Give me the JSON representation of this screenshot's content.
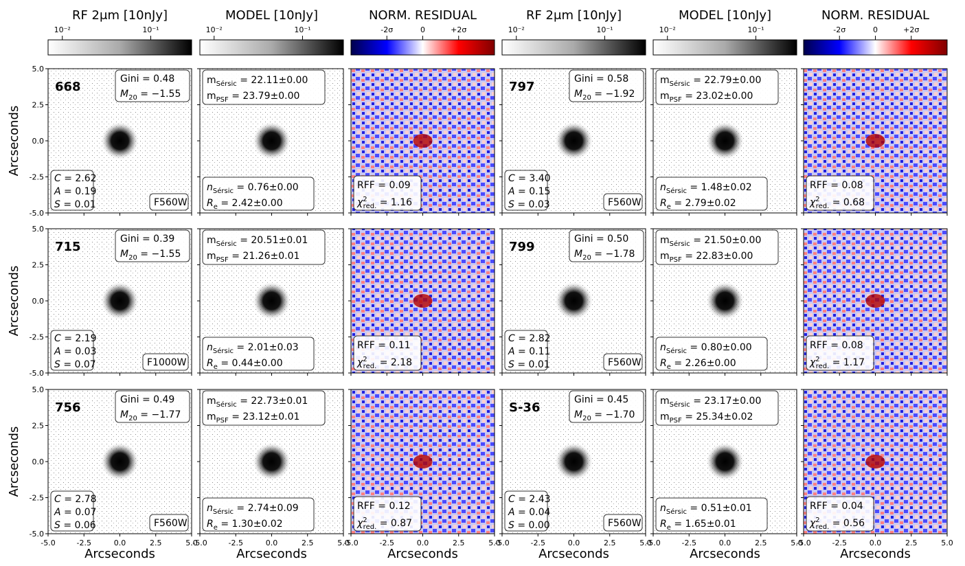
{
  "columns": [
    {
      "title": "RF 2μm [10nJy]",
      "colormap": "gray",
      "lim": [
        0.0069,
        0.29
      ],
      "ticks": [
        {
          "value": 0.01,
          "label": "10⁻²"
        },
        {
          "value": 0.1,
          "label": "10⁻¹"
        }
      ]
    },
    {
      "title": "MODEL [10nJy]",
      "colormap": "gray",
      "lim": [
        0.0069,
        0.29
      ],
      "ticks": [
        {
          "value": 0.01,
          "label": "10⁻²"
        },
        {
          "value": 0.1,
          "label": "10⁻¹"
        }
      ]
    },
    {
      "title": "NORM. RESIDUAL",
      "colormap": "seismic",
      "lim": [
        -4,
        4
      ],
      "ticks": [
        {
          "value": -2,
          "label": "-2σ"
        },
        0,
        {
          "value": 2,
          "label": "+2σ"
        }
      ]
    },
    {
      "title": "RF 2μm [10nJy]",
      "colormap": "gray",
      "lim": [
        0.0069,
        0.29
      ],
      "ticks": [
        {
          "value": 0.01,
          "label": "10⁻²"
        },
        {
          "value": 0.1,
          "label": "10⁻¹"
        }
      ]
    },
    {
      "title": "MODEL [10nJy]",
      "colormap": "gray",
      "lim": [
        0.0069,
        0.29
      ],
      "ticks": [
        {
          "value": 0.01,
          "label": "10⁻²"
        },
        {
          "value": 0.1,
          "label": "10⁻¹"
        }
      ]
    },
    {
      "title": "NORM. RESIDUAL",
      "colormap": "seismic",
      "lim": [
        -4,
        4
      ],
      "ticks": [
        {
          "value": -2,
          "label": "-2σ"
        },
        0,
        {
          "value": 2,
          "label": "+2σ"
        }
      ]
    }
  ],
  "axis": {
    "label": "Arcseconds",
    "lim": [
      -5,
      5
    ],
    "ticks": [
      {
        "value": -5,
        "label": "-5.0"
      },
      {
        "value": -2.5,
        "label": "-2.5"
      },
      {
        "value": 0,
        "label": "0.0"
      },
      {
        "value": 2.5,
        "label": "2.5"
      },
      {
        "value": 5,
        "label": "5.0"
      }
    ]
  },
  "labels": {
    "eq": " = ",
    "gini": "Gini",
    "m20": {
      "main": "M",
      "sub": "20"
    },
    "C": "C",
    "A": "A",
    "S": "S",
    "msersic": {
      "main": "m",
      "sub": "Sérsic"
    },
    "mpsf": {
      "main": "m",
      "sub": "PSF"
    },
    "nsersic": {
      "main": "n",
      "sub": "Sérsic"
    },
    "re": {
      "main": "R",
      "sub": "e"
    },
    "rff": "RFF",
    "chi2": {
      "main": "χ",
      "sup": "2",
      "sub": "red."
    }
  },
  "objects": [
    {
      "id": "668",
      "gini": "0.48",
      "m20": "−1.55",
      "C": "2.62",
      "A": "0.19",
      "S": "0.01",
      "filter": "F560W",
      "msersic": "22.11±0.00",
      "mpsf": "23.79±0.00",
      "nsersic": "0.76±0.00",
      "re": "2.42±0.00",
      "rff": "0.09",
      "chi2": "1.16"
    },
    {
      "id": "797",
      "gini": "0.58",
      "m20": "−1.92",
      "C": "3.40",
      "A": "0.15",
      "S": "0.03",
      "filter": "F560W",
      "msersic": "22.79±0.00",
      "mpsf": "23.02±0.00",
      "nsersic": "1.48±0.02",
      "re": "2.79±0.02",
      "rff": "0.08",
      "chi2": "0.68"
    },
    {
      "id": "715",
      "gini": "0.39",
      "m20": "−1.55",
      "C": "2.19",
      "A": "0.03",
      "S": "0.07",
      "filter": "F1000W",
      "msersic": "20.51±0.01",
      "mpsf": "21.26±0.01",
      "nsersic": "2.01±0.03",
      "re": "0.44±0.00",
      "rff": "0.11",
      "chi2": "2.18"
    },
    {
      "id": "799",
      "gini": "0.50",
      "m20": "−1.78",
      "C": "2.82",
      "A": "0.11",
      "S": "0.01",
      "filter": "F560W",
      "msersic": "21.50±0.00",
      "mpsf": "22.83±0.00",
      "nsersic": "0.80±0.00",
      "re": "2.26±0.00",
      "rff": "0.08",
      "chi2": "1.17"
    },
    {
      "id": "756",
      "gini": "0.49",
      "m20": "−1.77",
      "C": "2.78",
      "A": "0.07",
      "S": "0.06",
      "filter": "F560W",
      "msersic": "22.73±0.01",
      "mpsf": "23.12±0.01",
      "nsersic": "2.74±0.09",
      "re": "1.30±0.02",
      "rff": "0.12",
      "chi2": "0.87"
    },
    {
      "id": "S-36",
      "gini": "0.45",
      "m20": "−1.70",
      "C": "2.43",
      "A": "0.04",
      "S": "0.00",
      "filter": "F560W",
      "msersic": "23.17±0.00",
      "mpsf": "25.34±0.02",
      "nsersic": "0.51±0.01",
      "re": "1.65±0.01",
      "rff": "0.04",
      "chi2": "0.56"
    }
  ]
}
